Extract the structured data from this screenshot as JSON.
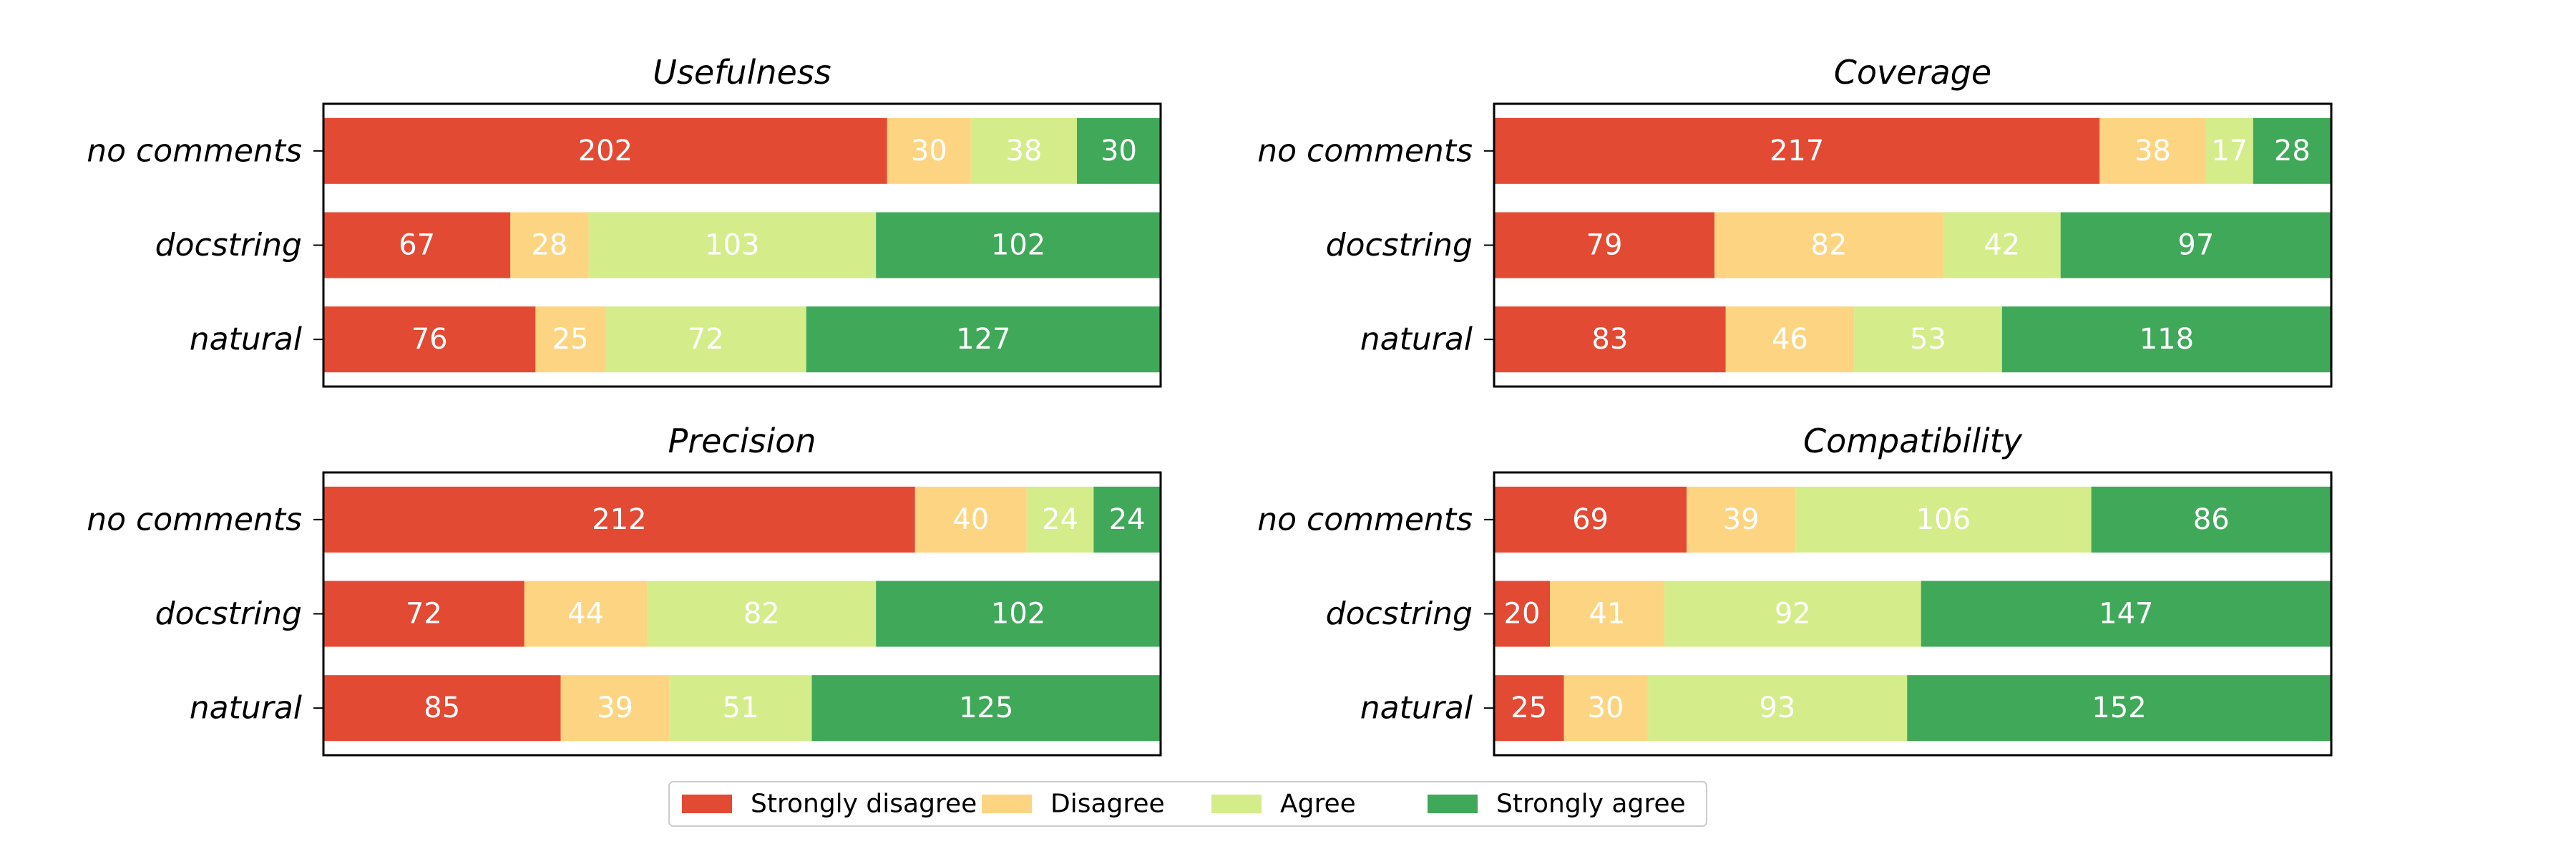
{
  "chart_data": {
    "type": "bar",
    "orientation": "horizontal",
    "stacked": true,
    "normalized": true,
    "categories": [
      "no comments",
      "docstring",
      "natural"
    ],
    "legend": {
      "placement": "bottom-center",
      "entries": [
        "Strongly disagree",
        "Disagree",
        "Agree",
        "Strongly agree"
      ]
    },
    "series_colors": [
      "#e34a33",
      "#fdd582",
      "#d4ed8a",
      "#3fa959"
    ],
    "panels": [
      {
        "title": "Usefulness",
        "series": [
          {
            "name": "Strongly disagree",
            "values": [
              202,
              67,
              76
            ]
          },
          {
            "name": "Disagree",
            "values": [
              30,
              28,
              25
            ]
          },
          {
            "name": "Agree",
            "values": [
              38,
              103,
              72
            ]
          },
          {
            "name": "Strongly agree",
            "values": [
              30,
              102,
              127
            ]
          }
        ]
      },
      {
        "title": "Coverage",
        "series": [
          {
            "name": "Strongly disagree",
            "values": [
              217,
              79,
              83
            ]
          },
          {
            "name": "Disagree",
            "values": [
              38,
              82,
              46
            ]
          },
          {
            "name": "Agree",
            "values": [
              17,
              42,
              53
            ]
          },
          {
            "name": "Strongly agree",
            "values": [
              28,
              97,
              118
            ]
          }
        ]
      },
      {
        "title": "Precision",
        "series": [
          {
            "name": "Strongly disagree",
            "values": [
              212,
              72,
              85
            ]
          },
          {
            "name": "Disagree",
            "values": [
              40,
              44,
              39
            ]
          },
          {
            "name": "Agree",
            "values": [
              24,
              82,
              51
            ]
          },
          {
            "name": "Strongly agree",
            "values": [
              24,
              102,
              125
            ]
          }
        ]
      },
      {
        "title": "Compatibility",
        "series": [
          {
            "name": "Strongly disagree",
            "values": [
              69,
              20,
              25
            ]
          },
          {
            "name": "Disagree",
            "values": [
              39,
              41,
              30
            ]
          },
          {
            "name": "Agree",
            "values": [
              106,
              92,
              93
            ]
          },
          {
            "name": "Strongly agree",
            "values": [
              86,
              147,
              152
            ]
          }
        ]
      }
    ]
  }
}
